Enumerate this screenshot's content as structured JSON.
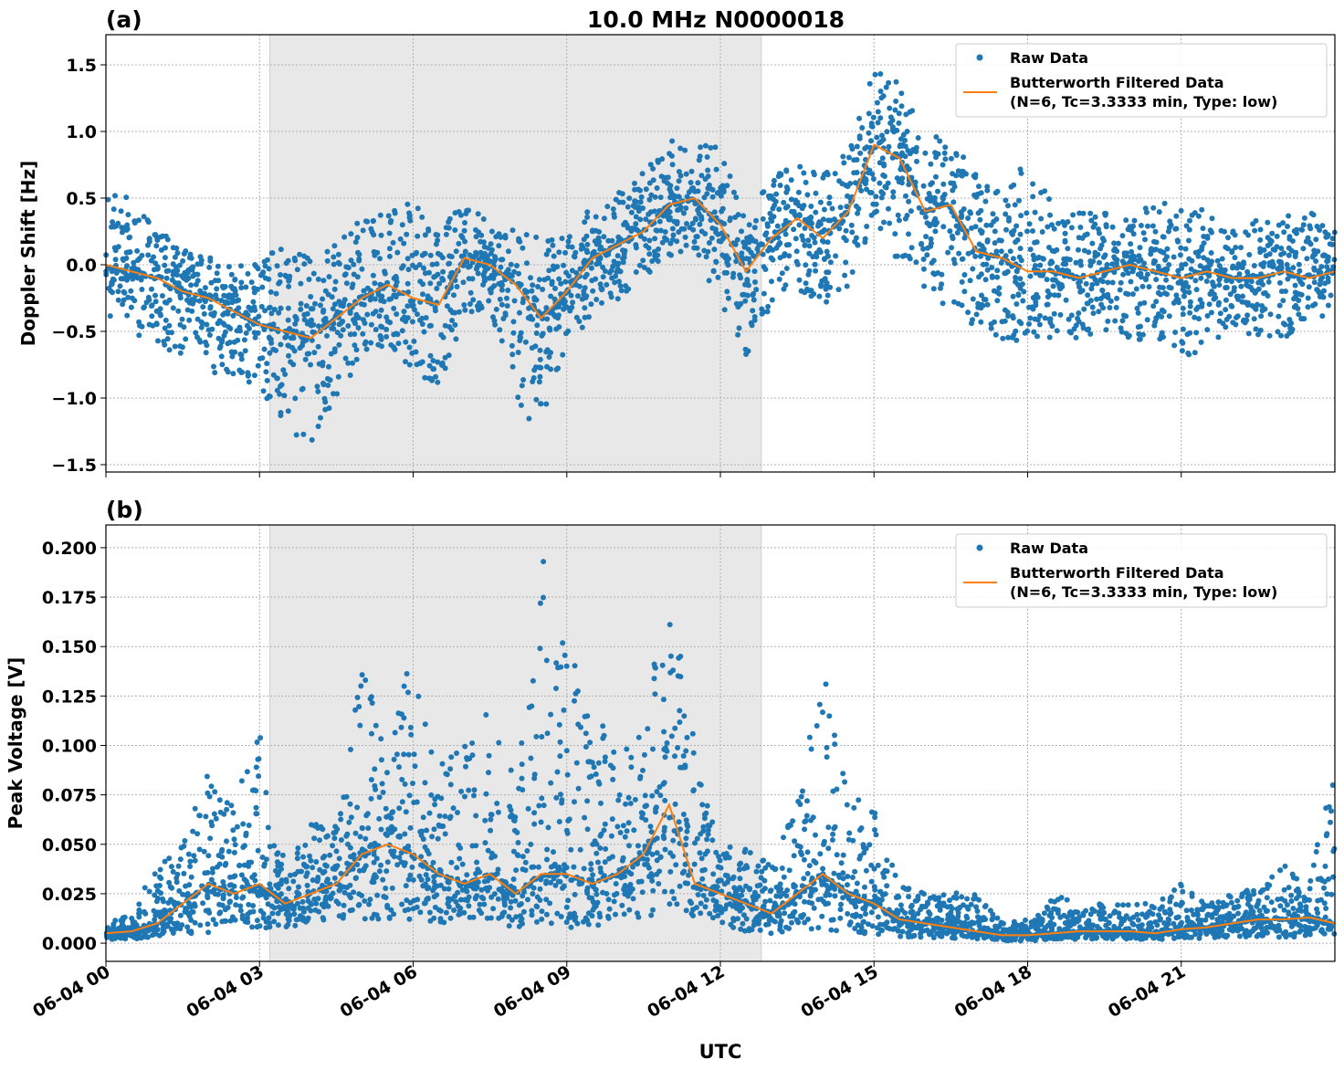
{
  "title": "10.0 MHz N0000018",
  "xlabel": "UTC",
  "x_tick_labels": [
    "06-04 00",
    "06-04 03",
    "06-04 06",
    "06-04 09",
    "06-04 12",
    "06-04 15",
    "06-04 18",
    "06-04 21"
  ],
  "x_tick_hours": [
    0,
    3,
    6,
    9,
    12,
    15,
    18,
    21
  ],
  "xlim_hours": [
    0,
    24
  ],
  "shaded_interval_hours": [
    3.2,
    12.8
  ],
  "colors": {
    "raw": "#1f77b4",
    "filtered": "#ff7f0e",
    "shade": "#e8e8e8"
  },
  "legend": {
    "raw": "Raw Data",
    "filtered_line1": "Butterworth Filtered Data",
    "filtered_line2": "(N=6, Tc=3.3333 min, Type: low)",
    "placement": "top-right"
  },
  "chart_data": [
    {
      "type": "scatter",
      "panel_label": "(a)",
      "ylabel": "Doppler Shift [Hz]",
      "ylim": [
        -1.555,
        1.726
      ],
      "y_ticks": [
        1.5,
        1.0,
        0.5,
        0.0,
        -0.5,
        -1.0,
        -1.5
      ],
      "y_tick_labels": [
        "1.5",
        "1.0",
        "0.5",
        "0.0",
        "−0.5",
        "−1.0",
        "−1.5"
      ],
      "grid": true,
      "x_hours_step": 0.5,
      "series": [
        {
          "name": "Butterworth Filtered Data",
          "values": [
            0.0,
            -0.05,
            -0.1,
            -0.2,
            -0.25,
            -0.35,
            -0.45,
            -0.5,
            -0.55,
            -0.4,
            -0.25,
            -0.15,
            -0.25,
            -0.3,
            0.05,
            0.0,
            -0.15,
            -0.4,
            -0.2,
            0.05,
            0.15,
            0.25,
            0.45,
            0.5,
            0.3,
            -0.05,
            0.2,
            0.35,
            0.2,
            0.4,
            0.9,
            0.8,
            0.4,
            0.45,
            0.1,
            0.05,
            -0.05,
            -0.05,
            -0.1,
            -0.05,
            0.0,
            -0.05,
            -0.1,
            -0.05,
            -0.1,
            -0.1,
            -0.05,
            -0.1,
            -0.05
          ]
        },
        {
          "name": "Raw Data",
          "max": [
            0.55,
            0.5,
            0.35,
            0.15,
            0.1,
            0.0,
            0.05,
            0.15,
            0.1,
            0.2,
            0.35,
            0.4,
            0.5,
            0.3,
            0.45,
            0.35,
            0.25,
            0.2,
            0.2,
            0.45,
            0.55,
            0.7,
            0.95,
            0.9,
            0.95,
            0.35,
            0.65,
            0.8,
            0.7,
            0.85,
            1.5,
            1.5,
            1.0,
            0.95,
            0.7,
            0.55,
            0.8,
            0.45,
            0.4,
            0.4,
            0.4,
            0.45,
            0.5,
            0.4,
            0.3,
            0.35,
            0.4,
            0.4,
            0.35
          ],
          "min": [
            -0.45,
            -0.55,
            -0.6,
            -0.7,
            -0.8,
            -0.85,
            -0.95,
            -1.3,
            -1.35,
            -1.0,
            -0.7,
            -0.6,
            -0.8,
            -0.95,
            -0.4,
            -0.35,
            -1.0,
            -1.3,
            -0.6,
            -0.4,
            -0.3,
            -0.1,
            0.05,
            0.1,
            -0.35,
            -0.75,
            -0.3,
            -0.2,
            -0.3,
            -0.2,
            0.3,
            0.0,
            -0.2,
            -0.35,
            -0.5,
            -0.6,
            -0.55,
            -0.55,
            -0.55,
            -0.5,
            -0.55,
            -0.6,
            -0.75,
            -0.6,
            -0.5,
            -0.55,
            -0.55,
            -0.5,
            -0.45
          ]
        }
      ]
    },
    {
      "type": "scatter",
      "panel_label": "(b)",
      "ylabel": "Peak Voltage [V]",
      "ylim": [
        -0.0092,
        0.2115
      ],
      "y_ticks": [
        0.2,
        0.175,
        0.15,
        0.125,
        0.1,
        0.075,
        0.05,
        0.025,
        0.0
      ],
      "y_tick_labels": [
        "0.200",
        "0.175",
        "0.150",
        "0.125",
        "0.100",
        "0.075",
        "0.050",
        "0.025",
        "0.000"
      ],
      "grid": true,
      "x_hours_step": 0.5,
      "series": [
        {
          "name": "Butterworth Filtered Data",
          "values": [
            0.005,
            0.006,
            0.01,
            0.02,
            0.03,
            0.025,
            0.03,
            0.02,
            0.025,
            0.03,
            0.045,
            0.05,
            0.045,
            0.035,
            0.03,
            0.035,
            0.025,
            0.035,
            0.035,
            0.03,
            0.035,
            0.045,
            0.07,
            0.03,
            0.025,
            0.02,
            0.015,
            0.025,
            0.035,
            0.025,
            0.02,
            0.012,
            0.01,
            0.008,
            0.006,
            0.004,
            0.004,
            0.005,
            0.006,
            0.006,
            0.006,
            0.005,
            0.007,
            0.008,
            0.01,
            0.012,
            0.012,
            0.013,
            0.01
          ]
        },
        {
          "name": "Raw Data",
          "max": [
            0.01,
            0.015,
            0.04,
            0.05,
            0.09,
            0.07,
            0.11,
            0.04,
            0.06,
            0.06,
            0.14,
            0.1,
            0.15,
            0.09,
            0.1,
            0.12,
            0.09,
            0.2,
            0.15,
            0.12,
            0.1,
            0.12,
            0.185,
            0.1,
            0.055,
            0.05,
            0.04,
            0.07,
            0.145,
            0.08,
            0.07,
            0.03,
            0.025,
            0.025,
            0.028,
            0.01,
            0.012,
            0.025,
            0.02,
            0.02,
            0.02,
            0.02,
            0.03,
            0.02,
            0.025,
            0.028,
            0.04,
            0.03,
            0.1
          ],
          "min": [
            0.002,
            0.002,
            0.003,
            0.004,
            0.005,
            0.005,
            0.006,
            0.007,
            0.008,
            0.01,
            0.012,
            0.012,
            0.012,
            0.01,
            0.01,
            0.01,
            0.008,
            0.008,
            0.008,
            0.008,
            0.01,
            0.012,
            0.015,
            0.01,
            0.008,
            0.006,
            0.005,
            0.006,
            0.006,
            0.005,
            0.004,
            0.003,
            0.003,
            0.002,
            0.002,
            0.001,
            0.001,
            0.002,
            0.002,
            0.002,
            0.002,
            0.002,
            0.002,
            0.002,
            0.003,
            0.003,
            0.003,
            0.003,
            0.003
          ]
        }
      ]
    }
  ]
}
